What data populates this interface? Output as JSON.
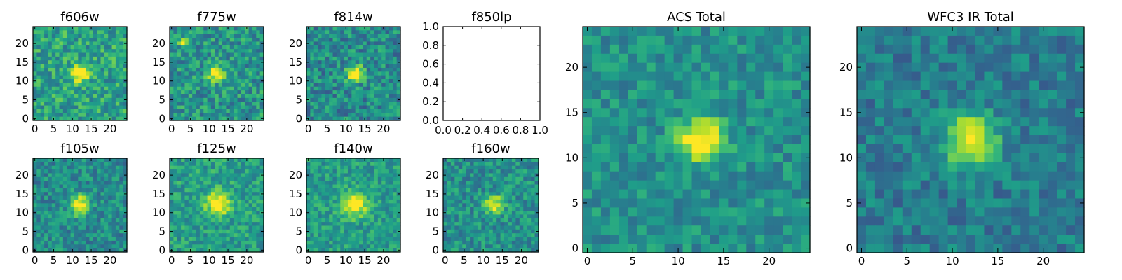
{
  "figure": {
    "cmap": [
      "#440154",
      "#482878",
      "#3e4989",
      "#31688e",
      "#26828e",
      "#1f9e89",
      "#35b779",
      "#6ece58",
      "#b5de2b",
      "#fde725"
    ],
    "panels": [
      {
        "id": "f606w",
        "title": "f606w",
        "kind": "image",
        "n": 25,
        "xticks": [
          "0",
          "5",
          "10",
          "15",
          "20"
        ],
        "yticks": [
          "0",
          "5",
          "10",
          "15",
          "20"
        ],
        "source": {
          "x": 12,
          "y": 12,
          "amp": 0.65,
          "sigma": 1.6
        },
        "bg": 0.58,
        "noise": 0.2,
        "seed": 11
      },
      {
        "id": "f775w",
        "title": "f775w",
        "kind": "image",
        "n": 25,
        "xticks": [
          "0",
          "5",
          "10",
          "15",
          "20"
        ],
        "yticks": [
          "0",
          "5",
          "10",
          "15",
          "20"
        ],
        "source": {
          "x": 12,
          "y": 12,
          "amp": 0.6,
          "sigma": 1.5
        },
        "extra": {
          "x": 3,
          "y": 20.5,
          "amp": 0.6,
          "sigma": 0.8
        },
        "bg": 0.52,
        "noise": 0.2,
        "seed": 23
      },
      {
        "id": "f814w",
        "title": "f814w",
        "kind": "image",
        "n": 25,
        "xticks": [
          "0",
          "5",
          "10",
          "15",
          "20"
        ],
        "yticks": [
          "0",
          "5",
          "10",
          "15",
          "20"
        ],
        "source": {
          "x": 12.5,
          "y": 12,
          "amp": 0.65,
          "sigma": 1.5
        },
        "bg": 0.48,
        "noise": 0.2,
        "seed": 37
      },
      {
        "id": "f850lp",
        "title": "f850lp",
        "kind": "empty",
        "xticks": [
          "0.0",
          "0.2",
          "0.4",
          "0.6",
          "0.8",
          "1.0"
        ],
        "yticks": [
          "0.0",
          "0.2",
          "0.4",
          "0.6",
          "0.8",
          "1.0"
        ]
      },
      {
        "id": "f105w",
        "title": "f105w",
        "kind": "image",
        "n": 25,
        "xticks": [
          "0",
          "5",
          "10",
          "15",
          "20"
        ],
        "yticks": [
          "0",
          "5",
          "10",
          "15",
          "20"
        ],
        "source": {
          "x": 12,
          "y": 12,
          "amp": 0.6,
          "sigma": 1.8
        },
        "bg": 0.48,
        "noise": 0.17,
        "seed": 41
      },
      {
        "id": "f125w",
        "title": "f125w",
        "kind": "image",
        "n": 25,
        "xticks": [
          "0",
          "5",
          "10",
          "15",
          "20"
        ],
        "yticks": [
          "0",
          "5",
          "10",
          "15",
          "20"
        ],
        "source": {
          "x": 12.5,
          "y": 12.5,
          "amp": 0.55,
          "sigma": 2.2
        },
        "bg": 0.56,
        "noise": 0.16,
        "seed": 53
      },
      {
        "id": "f140w",
        "title": "f140w",
        "kind": "image",
        "n": 25,
        "xticks": [
          "0",
          "5",
          "10",
          "15",
          "20"
        ],
        "yticks": [
          "0",
          "5",
          "10",
          "15",
          "20"
        ],
        "source": {
          "x": 12.5,
          "y": 12,
          "amp": 0.5,
          "sigma": 2.3
        },
        "bg": 0.55,
        "noise": 0.15,
        "seed": 67
      },
      {
        "id": "f160w",
        "title": "f160w",
        "kind": "image",
        "n": 25,
        "xticks": [
          "0",
          "5",
          "10",
          "15",
          "20"
        ],
        "yticks": [
          "0",
          "5",
          "10",
          "15",
          "20"
        ],
        "source": {
          "x": 13,
          "y": 12,
          "amp": 0.55,
          "sigma": 1.7
        },
        "bg": 0.5,
        "noise": 0.17,
        "seed": 79
      },
      {
        "id": "acs-total",
        "title": "ACS Total",
        "kind": "image",
        "n": 25,
        "xticks": [
          "0",
          "5",
          "10",
          "15",
          "20"
        ],
        "yticks": [
          "0",
          "5",
          "10",
          "15",
          "20"
        ],
        "source": {
          "x": 12.5,
          "y": 12,
          "amp": 0.6,
          "sigma": 1.7
        },
        "bg": 0.5,
        "noise": 0.14,
        "seed": 97
      },
      {
        "id": "wfc3-ir-total",
        "title": "WFC3 IR Total",
        "kind": "image",
        "n": 25,
        "xticks": [
          "0",
          "5",
          "10",
          "15",
          "20"
        ],
        "yticks": [
          "0",
          "5",
          "10",
          "15",
          "20"
        ],
        "source": {
          "x": 12,
          "y": 12,
          "amp": 0.62,
          "sigma": 2.0
        },
        "bg": 0.42,
        "noise": 0.14,
        "seed": 113
      }
    ]
  }
}
